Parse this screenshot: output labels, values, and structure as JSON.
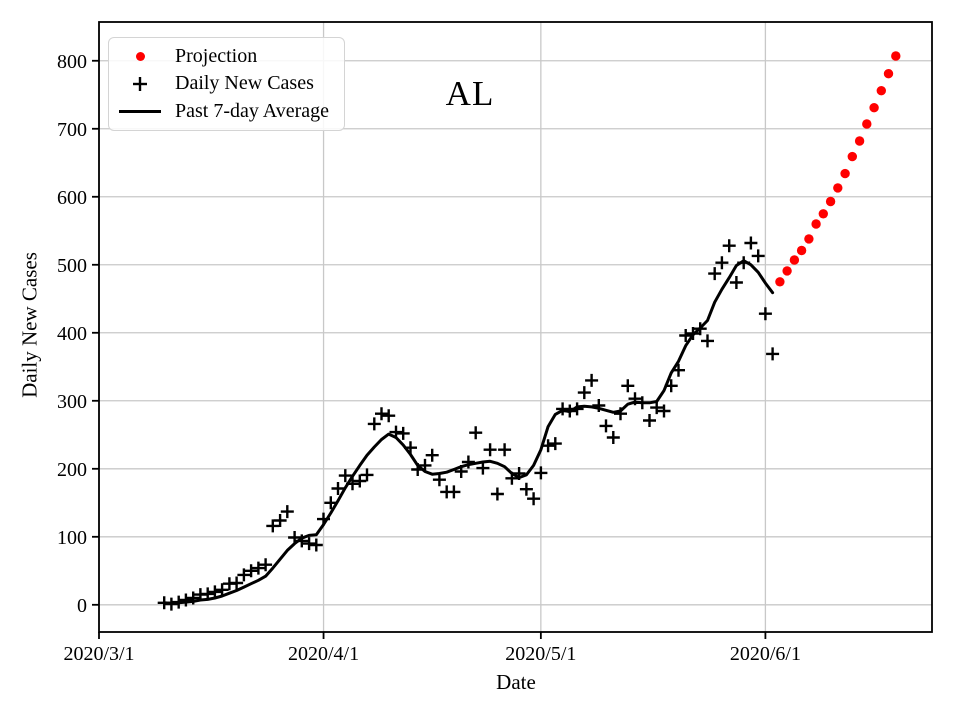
{
  "chart_data": {
    "type": "scatter+line",
    "title": "AL",
    "xlabel": "Date",
    "ylabel": "Daily New Cases",
    "x_tick_labels": [
      "2020/3/1",
      "2020/4/1",
      "2020/5/1",
      "2020/6/1"
    ],
    "y_ticks": [
      0,
      100,
      200,
      300,
      400,
      500,
      600,
      700,
      800
    ],
    "xlim": [
      "2020/3/1",
      "2020/6/24"
    ],
    "ylim": [
      -40,
      857
    ],
    "grid": true,
    "grid_color": "#c8c8c8",
    "legend_position": "upper left",
    "series": [
      {
        "name": "Projection",
        "plot_type": "scatter",
        "marker": "circle",
        "color": "#ff0000",
        "dates": [
          "2020/6/3",
          "2020/6/4",
          "2020/6/5",
          "2020/6/6",
          "2020/6/7",
          "2020/6/8",
          "2020/6/9",
          "2020/6/10",
          "2020/6/11",
          "2020/6/12",
          "2020/6/13",
          "2020/6/14",
          "2020/6/15",
          "2020/6/16",
          "2020/6/17",
          "2020/6/18",
          "2020/6/19"
        ],
        "values": [
          475,
          491,
          507,
          521,
          538,
          560,
          575,
          593,
          613,
          634,
          659,
          682,
          707,
          731,
          756,
          781,
          807
        ]
      },
      {
        "name": "Daily New Cases",
        "plot_type": "scatter",
        "marker": "plus",
        "color": "#000000",
        "dates": [
          "2020/3/10",
          "2020/3/11",
          "2020/3/12",
          "2020/3/13",
          "2020/3/14",
          "2020/3/15",
          "2020/3/16",
          "2020/3/17",
          "2020/3/18",
          "2020/3/19",
          "2020/3/20",
          "2020/3/21",
          "2020/3/22",
          "2020/3/23",
          "2020/3/24",
          "2020/3/25",
          "2020/3/26",
          "2020/3/27",
          "2020/3/28",
          "2020/3/29",
          "2020/3/30",
          "2020/3/31",
          "2020/4/1",
          "2020/4/2",
          "2020/4/3",
          "2020/4/4",
          "2020/4/5",
          "2020/4/6",
          "2020/4/7",
          "2020/4/8",
          "2020/4/9",
          "2020/4/10",
          "2020/4/11",
          "2020/4/12",
          "2020/4/13",
          "2020/4/14",
          "2020/4/15",
          "2020/4/16",
          "2020/4/17",
          "2020/4/18",
          "2020/4/19",
          "2020/4/20",
          "2020/4/21",
          "2020/4/22",
          "2020/4/23",
          "2020/4/24",
          "2020/4/25",
          "2020/4/26",
          "2020/4/27",
          "2020/4/28",
          "2020/4/29",
          "2020/4/30",
          "2020/5/1",
          "2020/5/2",
          "2020/5/3",
          "2020/5/4",
          "2020/5/5",
          "2020/5/6",
          "2020/5/7",
          "2020/5/8",
          "2020/5/9",
          "2020/5/10",
          "2020/5/11",
          "2020/5/12",
          "2020/5/13",
          "2020/5/14",
          "2020/5/15",
          "2020/5/16",
          "2020/5/17",
          "2020/5/18",
          "2020/5/19",
          "2020/5/20",
          "2020/5/21",
          "2020/5/22",
          "2020/5/23",
          "2020/5/24",
          "2020/5/25",
          "2020/5/26",
          "2020/5/27",
          "2020/5/28",
          "2020/5/29",
          "2020/5/30",
          "2020/5/31",
          "2020/6/1",
          "2020/6/2"
        ],
        "values": [
          3,
          1,
          4,
          7,
          10,
          15,
          16,
          19,
          22,
          31,
          32,
          44,
          50,
          54,
          59,
          116,
          124,
          137,
          99,
          94,
          90,
          88,
          126,
          150,
          171,
          190,
          178,
          182,
          191,
          266,
          281,
          278,
          254,
          252,
          231,
          199,
          205,
          220,
          184,
          166,
          166,
          196,
          210,
          253,
          201,
          228,
          163,
          228,
          186,
          193,
          170,
          156,
          194,
          234,
          237,
          288,
          285,
          288,
          312,
          330,
          293,
          263,
          246,
          281,
          322,
          303,
          297,
          271,
          290,
          285,
          322,
          345,
          396,
          399,
          406,
          388,
          487,
          503,
          528,
          474,
          503,
          532,
          513,
          428,
          369
        ]
      },
      {
        "name": "Past 7-day Average",
        "plot_type": "line",
        "marker": "none",
        "color": "#000000",
        "dates": [
          "2020/3/10",
          "2020/3/11",
          "2020/3/12",
          "2020/3/13",
          "2020/3/14",
          "2020/3/15",
          "2020/3/16",
          "2020/3/17",
          "2020/3/18",
          "2020/3/19",
          "2020/3/20",
          "2020/3/21",
          "2020/3/22",
          "2020/3/23",
          "2020/3/24",
          "2020/3/25",
          "2020/3/26",
          "2020/3/27",
          "2020/3/28",
          "2020/3/29",
          "2020/3/30",
          "2020/3/31",
          "2020/4/1",
          "2020/4/2",
          "2020/4/3",
          "2020/4/4",
          "2020/4/5",
          "2020/4/6",
          "2020/4/7",
          "2020/4/8",
          "2020/4/9",
          "2020/4/10",
          "2020/4/11",
          "2020/4/12",
          "2020/4/13",
          "2020/4/14",
          "2020/4/15",
          "2020/4/16",
          "2020/4/17",
          "2020/4/18",
          "2020/4/19",
          "2020/4/20",
          "2020/4/21",
          "2020/4/22",
          "2020/4/23",
          "2020/4/24",
          "2020/4/25",
          "2020/4/26",
          "2020/4/27",
          "2020/4/28",
          "2020/4/29",
          "2020/4/30",
          "2020/5/1",
          "2020/5/2",
          "2020/5/3",
          "2020/5/4",
          "2020/5/5",
          "2020/5/6",
          "2020/5/7",
          "2020/5/8",
          "2020/5/9",
          "2020/5/10",
          "2020/5/11",
          "2020/5/12",
          "2020/5/13",
          "2020/5/14",
          "2020/5/15",
          "2020/5/16",
          "2020/5/17",
          "2020/5/18",
          "2020/5/19",
          "2020/5/20",
          "2020/5/21",
          "2020/5/22",
          "2020/5/23",
          "2020/5/24",
          "2020/5/25",
          "2020/5/26",
          "2020/5/27",
          "2020/5/28",
          "2020/5/29",
          "2020/5/30",
          "2020/5/31",
          "2020/6/1",
          "2020/6/2"
        ],
        "values": [
          3,
          2,
          3,
          4,
          5,
          7,
          8,
          10,
          13,
          17,
          21,
          26,
          31,
          36,
          42,
          54,
          67,
          80,
          90,
          98,
          102,
          103,
          118,
          135,
          153,
          172,
          189,
          205,
          220,
          232,
          243,
          251,
          246,
          235,
          221,
          205,
          196,
          192,
          193,
          195,
          199,
          203,
          206,
          208,
          210,
          211,
          208,
          203,
          193,
          187,
          191,
          205,
          228,
          262,
          280,
          286,
          284,
          291,
          292,
          291,
          289,
          286,
          283,
          285,
          295,
          298,
          297,
          297,
          299,
          315,
          341,
          358,
          381,
          397,
          407,
          418,
          445,
          464,
          481,
          499,
          506,
          500,
          489,
          473,
          459
        ]
      }
    ]
  }
}
